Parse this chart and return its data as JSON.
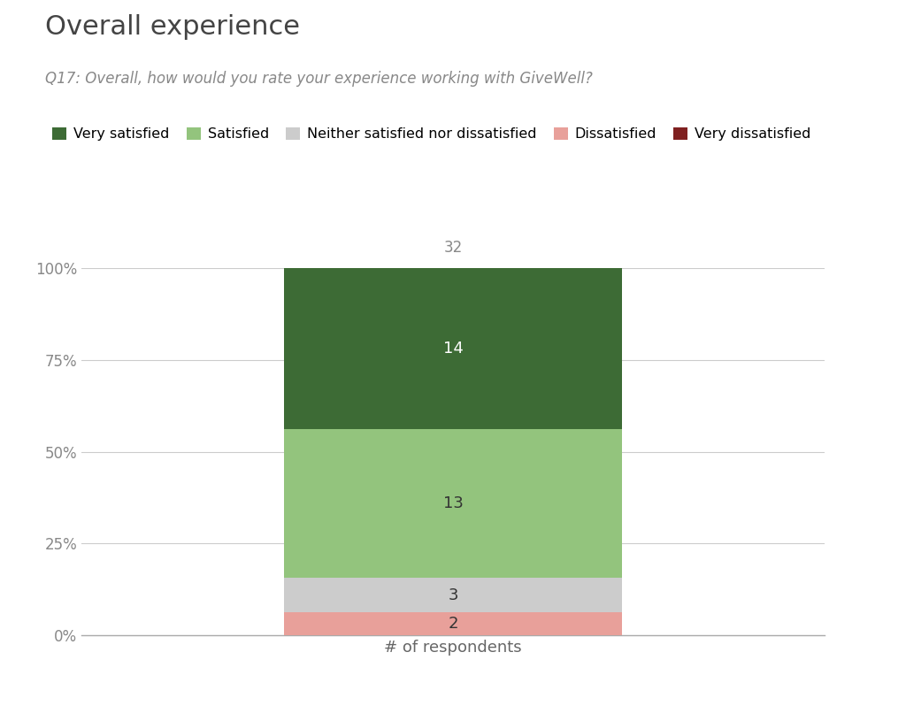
{
  "title": "Overall experience",
  "subtitle": "Q17: Overall, how would you rate your experience working with GiveWell?",
  "xlabel": "# of respondents",
  "total_label": "32",
  "segments": [
    {
      "label": "Very dissatisfied",
      "value": 0,
      "color": "#7f2020",
      "text_color": "#ffffff"
    },
    {
      "label": "Dissatisfied",
      "value": 2,
      "color": "#e8a09a",
      "text_color": "#333333"
    },
    {
      "label": "Neither satisfied nor dissatisfied",
      "value": 3,
      "color": "#cccccc",
      "text_color": "#333333"
    },
    {
      "label": "Satisfied",
      "value": 13,
      "color": "#93c47d",
      "text_color": "#333333"
    },
    {
      "label": "Very satisfied",
      "value": 14,
      "color": "#3d6b35",
      "text_color": "#ffffff"
    }
  ],
  "total": 32,
  "background_color": "#ffffff",
  "grid_color": "#cccccc",
  "title_fontsize": 22,
  "subtitle_fontsize": 12,
  "tick_fontsize": 12,
  "label_fontsize": 13,
  "legend_fontsize": 11.5
}
